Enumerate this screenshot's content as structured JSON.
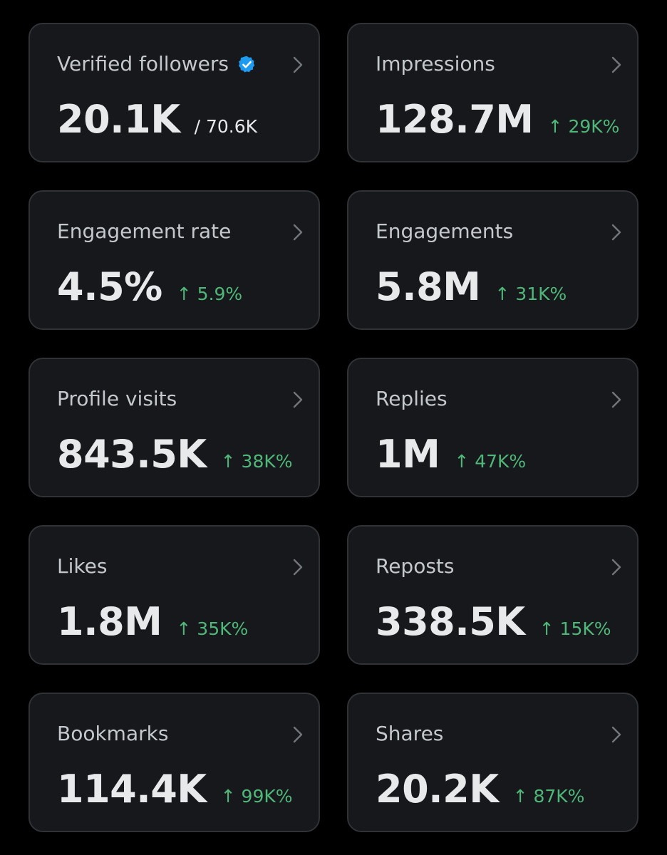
{
  "colors": {
    "background": "#000000",
    "card": "#16181c",
    "card_border": "#2f3336",
    "title": "#c4c8cc",
    "value": "#e7e9ea",
    "positive_change": "#4fb878",
    "verified_badge": "#1d9bf0"
  },
  "cards": [
    {
      "title": "Verified followers",
      "icon": "verified-badge-icon",
      "value": "20.1K",
      "total": "/ 70.6K"
    },
    {
      "title": "Impressions",
      "value": "128.7M",
      "change": "↑ 29K%"
    },
    {
      "title": "Engagement rate",
      "value": "4.5%",
      "change": "↑ 5.9%"
    },
    {
      "title": "Engagements",
      "value": "5.8M",
      "change": "↑ 31K%"
    },
    {
      "title": "Profile visits",
      "value": "843.5K",
      "change": "↑ 38K%"
    },
    {
      "title": "Replies",
      "value": "1M",
      "change": "↑ 47K%"
    },
    {
      "title": "Likes",
      "value": "1.8M",
      "change": "↑ 35K%"
    },
    {
      "title": "Reposts",
      "value": "338.5K",
      "change": "↑ 15K%"
    },
    {
      "title": "Bookmarks",
      "value": "114.4K",
      "change": "↑ 99K%"
    },
    {
      "title": "Shares",
      "value": "20.2K",
      "change": "↑ 87K%"
    }
  ]
}
